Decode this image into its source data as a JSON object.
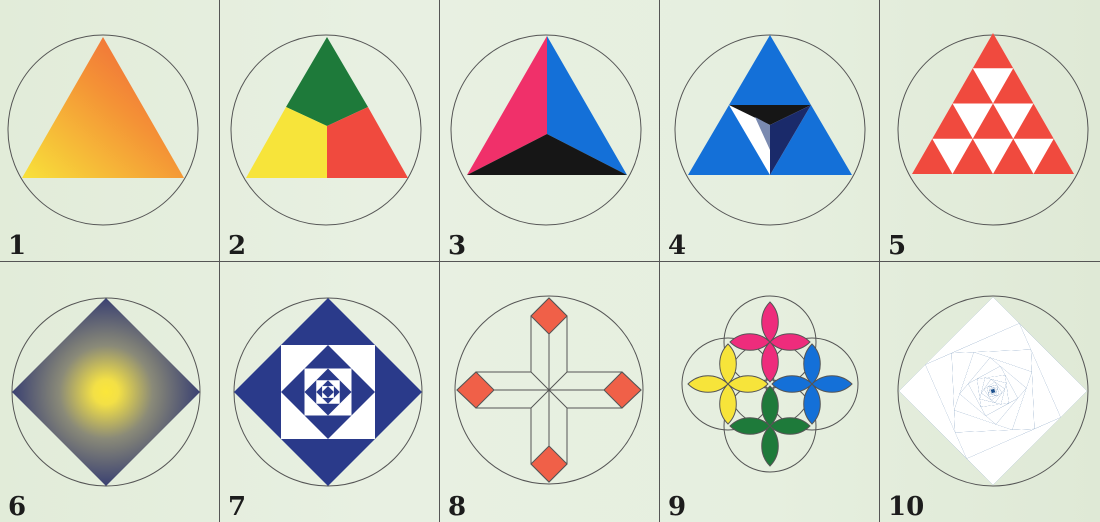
{
  "panels": [
    {
      "number": "1"
    },
    {
      "number": "2"
    },
    {
      "number": "3"
    },
    {
      "number": "4"
    },
    {
      "number": "5"
    },
    {
      "number": "6"
    },
    {
      "number": "7"
    },
    {
      "number": "8"
    },
    {
      "number": "9"
    },
    {
      "number": "10"
    }
  ],
  "colors": {
    "background": "#e4eedd",
    "orange": "#f08a3a",
    "yellow": "#f7e43a",
    "red": "#f04a3e",
    "green": "#1e7a3a",
    "pink": "#f0306a",
    "blue": "#1470d8",
    "black": "#161616",
    "navy": "#2a3a8a",
    "salmon": "#f06048",
    "magenta": "#ee2c7c",
    "deep_blue": "#1a4f8c"
  }
}
